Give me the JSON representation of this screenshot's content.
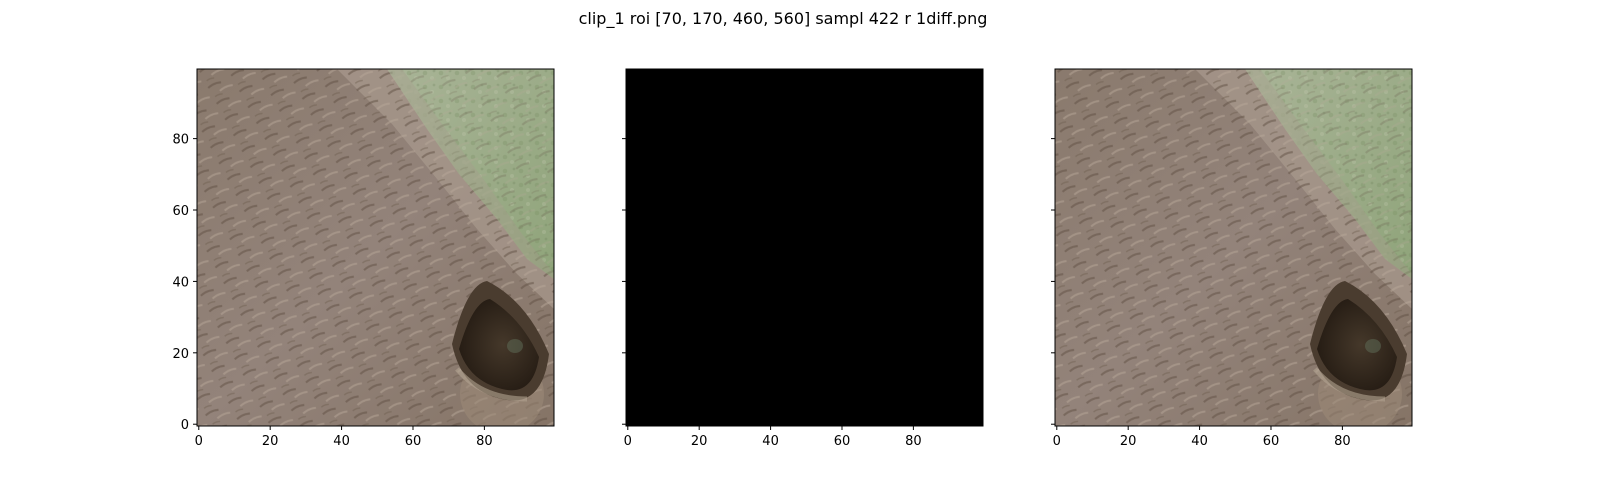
{
  "figure": {
    "title": "clip_1 roi [70, 170, 460, 560] sampl 422 r 1diff.png"
  },
  "chart_data": [
    {
      "type": "heatmap",
      "content": "image",
      "image_extent": {
        "x": [
          0,
          100
        ],
        "y": [
          0,
          100
        ]
      },
      "y_inverted": true,
      "xlim": [
        -0.5,
        99.5
      ],
      "ylim": [
        99.5,
        -0.5
      ],
      "xticks": [
        0,
        20,
        40,
        60,
        80
      ],
      "yticks": [
        0,
        20,
        40,
        60,
        80
      ],
      "show_xtick_labels": true,
      "show_ytick_labels": true,
      "palette": {
        "fur": "#8e7d70",
        "fur_dark": "#5e4d40",
        "fur_light": "#b0a294",
        "grass": "#9aae86",
        "eye": "#2c2218"
      }
    },
    {
      "type": "heatmap",
      "content": "difference",
      "fill": "#000000",
      "xlim": [
        -0.5,
        99.5
      ],
      "ylim": [
        99.5,
        -0.5
      ],
      "xticks": [
        0,
        20,
        40,
        60,
        80
      ],
      "yticks": [
        0,
        20,
        40,
        60,
        80
      ],
      "show_xtick_labels": true,
      "show_ytick_labels": false
    },
    {
      "type": "heatmap",
      "content": "image",
      "image_extent": {
        "x": [
          0,
          100
        ],
        "y": [
          0,
          100
        ]
      },
      "y_inverted": true,
      "xlim": [
        -0.5,
        99.5
      ],
      "ylim": [
        99.5,
        -0.5
      ],
      "xticks": [
        0,
        20,
        40,
        60,
        80
      ],
      "yticks": [
        0,
        20,
        40,
        60,
        80
      ],
      "show_xtick_labels": true,
      "show_ytick_labels": false,
      "palette": {
        "fur": "#8e7d70",
        "fur_dark": "#5e4d40",
        "fur_light": "#b0a294",
        "grass": "#9aae86",
        "eye": "#2c2218"
      }
    }
  ]
}
